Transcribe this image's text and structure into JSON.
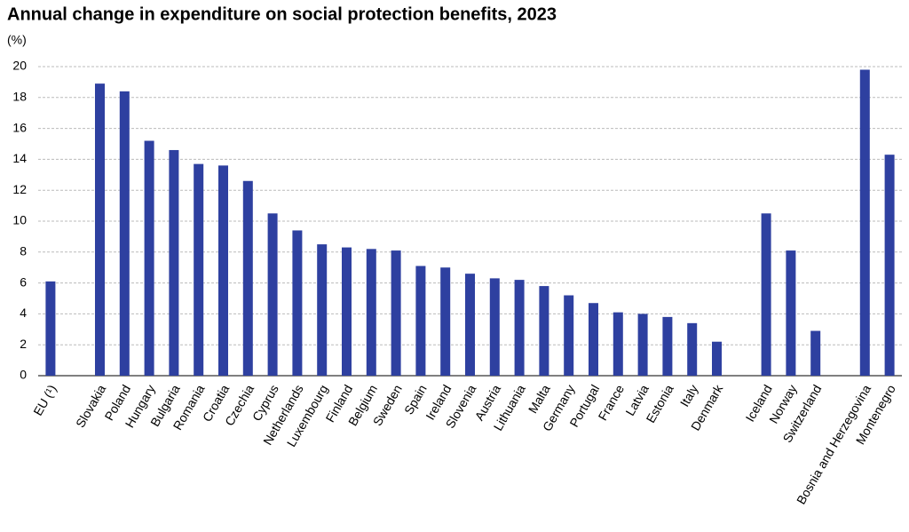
{
  "chart_data": {
    "type": "bar",
    "title": "Annual change in expenditure on social protection benefits, 2023",
    "y_label": "(%)",
    "categories": [
      "EU (¹)",
      null,
      "Slovakia",
      "Poland",
      "Hungary",
      "Bulgaria",
      "Romania",
      "Croatia",
      "Czechia",
      "Cyprus",
      "Netherlands",
      "Luxembourg",
      "Finland",
      "Belgium",
      "Sweden",
      "Spain",
      "Ireland",
      "Slovenia",
      "Austria",
      "Lithuania",
      "Malta",
      "Germany",
      "Portugal",
      "France",
      "Latvia",
      "Estonia",
      "Italy",
      "Denmark",
      null,
      "Iceland",
      "Norway",
      "Switzerland",
      null,
      "Bosnia and Herzegovina",
      "Montenegro"
    ],
    "values": [
      6.1,
      null,
      18.9,
      18.4,
      15.2,
      14.6,
      13.7,
      13.6,
      12.6,
      10.5,
      9.4,
      8.5,
      8.3,
      8.2,
      8.1,
      7.1,
      7.0,
      6.6,
      6.3,
      6.2,
      5.8,
      5.2,
      4.7,
      4.1,
      4.0,
      3.8,
      3.4,
      2.2,
      null,
      10.5,
      8.1,
      2.9,
      null,
      19.8,
      14.3
    ],
    "color": "#2e40a0",
    "ylim": [
      0,
      20
    ],
    "yticks": [
      0,
      2,
      4,
      6,
      8,
      10,
      12,
      14,
      16,
      18,
      20
    ],
    "grid": true
  }
}
